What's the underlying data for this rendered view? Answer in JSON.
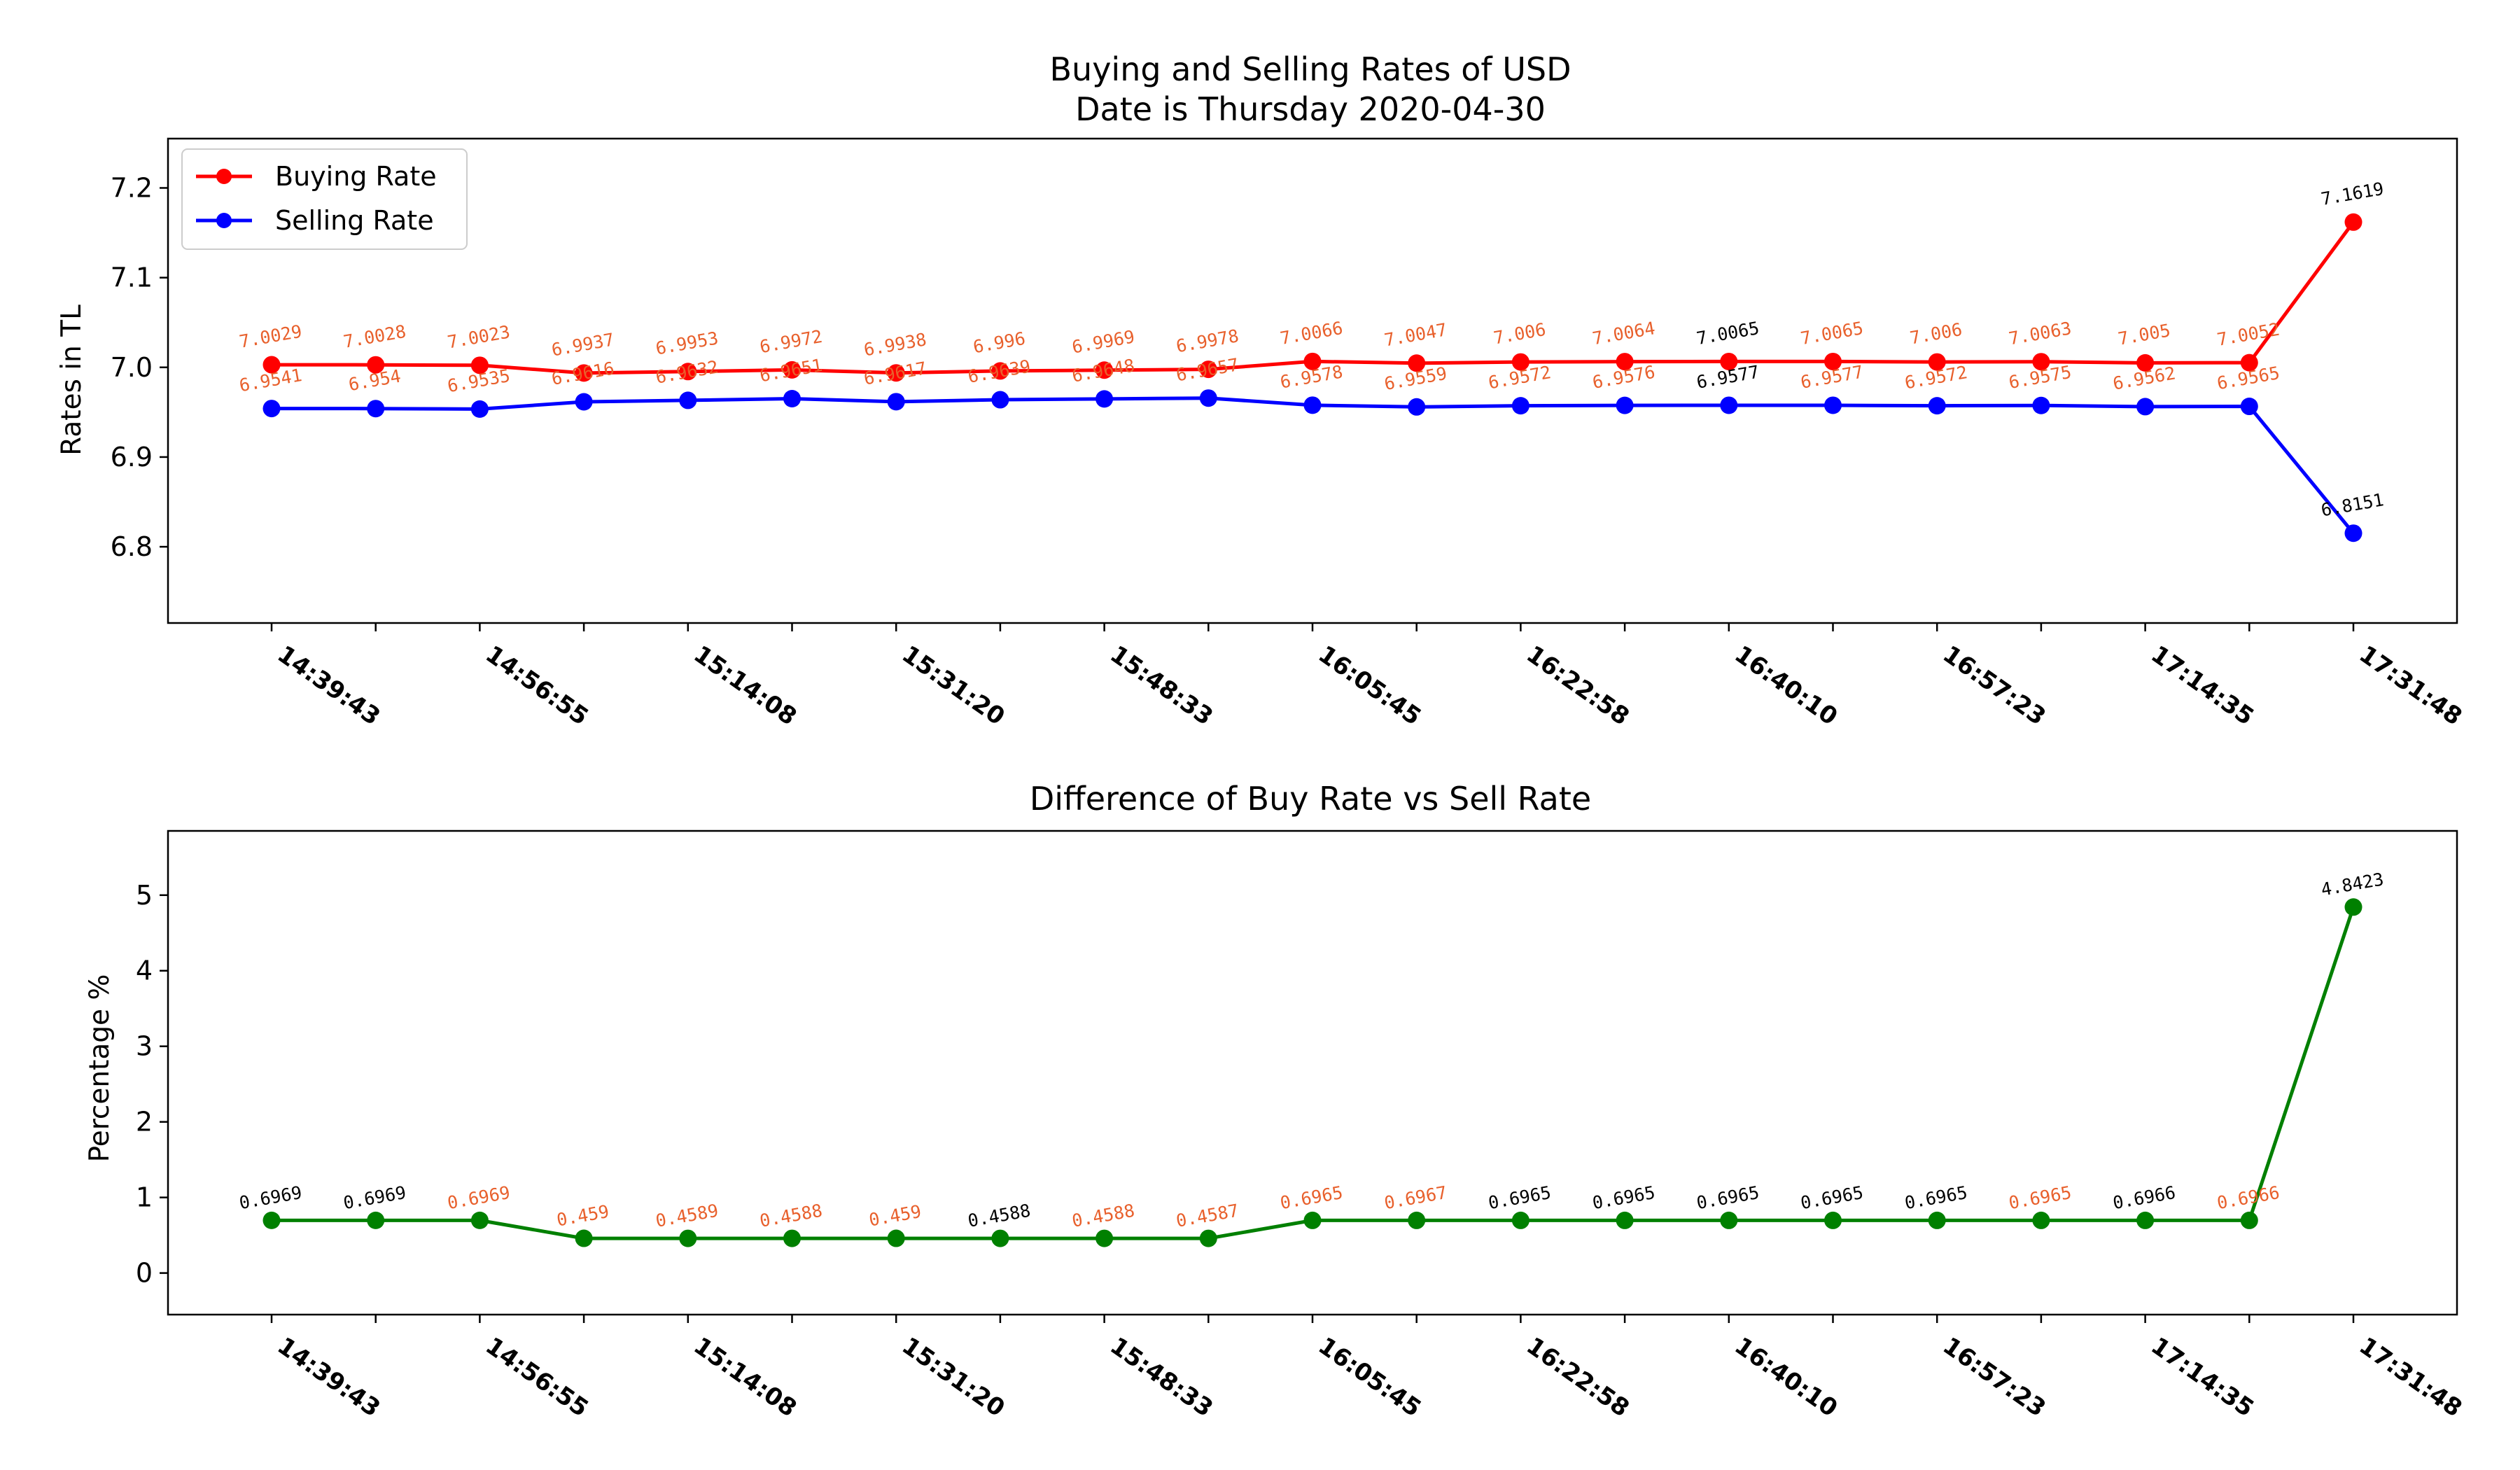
{
  "chart_data": [
    {
      "type": "line",
      "title": "Buying and Selling Rates of USD",
      "subtitle": "Date is Thursday 2020-04-30",
      "xlabel": "",
      "ylabel": "Rates in TL",
      "ylim": [
        6.715,
        7.255
      ],
      "yticks": [
        "6.8",
        "6.9",
        "7.0",
        "7.1",
        "7.2"
      ],
      "xtick_labels": [
        "14:39:43",
        "14:56:55",
        "15:14:08",
        "15:31:20",
        "15:48:33",
        "16:05:45",
        "16:22:58",
        "16:40:10",
        "16:57:23",
        "17:14:35",
        "17:31:48"
      ],
      "grid": false,
      "legend_position": "upper-left",
      "series": [
        {
          "name": "Buying Rate",
          "color": "#ff0000",
          "values": [
            7.0029,
            7.0028,
            7.0023,
            6.9937,
            6.9953,
            6.9972,
            6.9938,
            6.996,
            6.9969,
            6.9978,
            7.0066,
            7.0047,
            7.006,
            7.0064,
            7.0065,
            7.0065,
            7.006,
            7.0063,
            7.005,
            7.0052,
            7.1619
          ],
          "labels": [
            "7.0029",
            "7.0028",
            "7.0023",
            "6.9937",
            "6.9953",
            "6.9972",
            "6.9938",
            "6.996",
            "6.9969",
            "6.9978",
            "7.0066",
            "7.0047",
            "7.006",
            "7.0064",
            "7.0065",
            "7.0065",
            "7.006",
            "7.0063",
            "7.005",
            "7.0052",
            "7.1619"
          ]
        },
        {
          "name": "Selling Rate",
          "color": "#0000ff",
          "values": [
            6.9541,
            6.954,
            6.9535,
            6.9616,
            6.9632,
            6.9651,
            6.9617,
            6.9639,
            6.9648,
            6.9657,
            6.9578,
            6.9559,
            6.9572,
            6.9576,
            6.9577,
            6.9577,
            6.9572,
            6.9575,
            6.9562,
            6.9565,
            6.8151
          ],
          "labels": [
            "6.9541",
            "6.954",
            "6.9535",
            "6.9616",
            "6.9632",
            "6.9651",
            "6.9617",
            "6.9639",
            "6.9648",
            "6.9657",
            "6.9578",
            "6.9559",
            "6.9572",
            "6.9576",
            "6.9577",
            "6.9577",
            "6.9572",
            "6.9575",
            "6.9562",
            "6.9565",
            "6.8151"
          ]
        }
      ],
      "label_colors": [
        "#e8602c",
        "#e8602c",
        "#e8602c",
        "#e8602c",
        "#e8602c",
        "#e8602c",
        "#e8602c",
        "#e8602c",
        "#e8602c",
        "#e8602c",
        "#e8602c",
        "#e8602c",
        "#e8602c",
        "#e8602c",
        "#000000",
        "#e8602c",
        "#e8602c",
        "#e8602c",
        "#e8602c",
        "#e8602c",
        "#000000"
      ]
    },
    {
      "type": "line",
      "title": "Difference of Buy Rate vs Sell Rate",
      "xlabel": "",
      "ylabel": "Percentage %",
      "ylim": [
        -0.55,
        5.85
      ],
      "yticks": [
        "0",
        "1",
        "2",
        "3",
        "4",
        "5"
      ],
      "xtick_labels": [
        "14:39:43",
        "14:56:55",
        "15:14:08",
        "15:31:20",
        "15:48:33",
        "16:05:45",
        "16:22:58",
        "16:40:10",
        "16:57:23",
        "17:14:35",
        "17:31:48"
      ],
      "grid": false,
      "series": [
        {
          "color": "#008000",
          "values": [
            0.6969,
            0.6969,
            0.6969,
            0.459,
            0.4589,
            0.4588,
            0.459,
            0.4588,
            0.4588,
            0.4587,
            0.6965,
            0.6967,
            0.6965,
            0.6965,
            0.6965,
            0.6965,
            0.6965,
            0.6965,
            0.6966,
            0.6966,
            4.8423
          ],
          "labels": [
            "0.6969",
            "0.6969",
            "0.6969",
            "0.459",
            "0.4589",
            "0.4588",
            "0.459",
            "0.4588",
            "0.4588",
            "0.4587",
            "0.6965",
            "0.6967",
            "0.6965",
            "0.6965",
            "0.6965",
            "0.6965",
            "0.6965",
            "0.6965",
            "0.6966",
            "0.6966",
            "4.8423"
          ]
        }
      ],
      "label_colors": [
        "#000000",
        "#000000",
        "#e8602c",
        "#e8602c",
        "#e8602c",
        "#e8602c",
        "#e8602c",
        "#000000",
        "#e8602c",
        "#e8602c",
        "#e8602c",
        "#e8602c",
        "#000000",
        "#000000",
        "#000000",
        "#000000",
        "#000000",
        "#e8602c",
        "#000000",
        "#e8602c",
        "#000000"
      ]
    }
  ]
}
